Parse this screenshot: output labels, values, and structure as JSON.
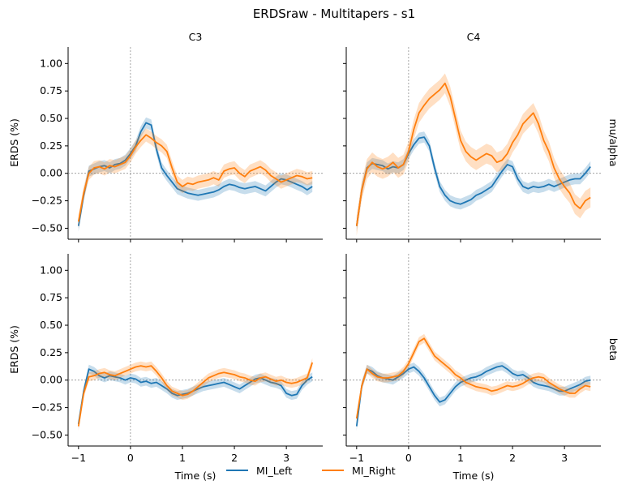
{
  "title": "ERDSraw - Multitapers - s1",
  "columns": [
    "C3",
    "C4"
  ],
  "rows": [
    "mu/alpha",
    "beta"
  ],
  "ylabel": "ERDS (%)",
  "xlabel": "Time (s)",
  "legend": {
    "items": [
      "MI_Left",
      "MI_Right"
    ],
    "position": "bottom-center"
  },
  "colors": {
    "MI_Left": "#1f77b4",
    "MI_Right": "#ff7f0e",
    "reference": "#7f7f7f"
  },
  "chart_data": [
    {
      "type": "line",
      "row": "mu/alpha",
      "column": "C3",
      "xlim": [
        -1.2,
        3.7
      ],
      "ylim": [
        -0.6,
        1.15
      ],
      "xticks": [
        -1,
        0,
        1,
        2,
        3
      ],
      "yticks": [
        -0.5,
        -0.25,
        0.0,
        0.25,
        0.5,
        0.75,
        1.0
      ],
      "grid": false,
      "reference_lines": {
        "x": 0,
        "y": 0
      },
      "shaded_band": "confidence interval",
      "x": [
        -1.0,
        -0.9,
        -0.8,
        -0.7,
        -0.6,
        -0.5,
        -0.4,
        -0.3,
        -0.2,
        -0.1,
        0.0,
        0.1,
        0.2,
        0.3,
        0.4,
        0.5,
        0.6,
        0.7,
        0.8,
        0.9,
        1.0,
        1.1,
        1.2,
        1.3,
        1.4,
        1.5,
        1.6,
        1.7,
        1.8,
        1.9,
        2.0,
        2.1,
        2.2,
        2.3,
        2.4,
        2.5,
        2.6,
        2.7,
        2.8,
        2.9,
        3.0,
        3.1,
        3.2,
        3.3,
        3.4,
        3.5
      ],
      "series": [
        {
          "name": "MI_Left",
          "values": [
            -0.48,
            -0.2,
            0.02,
            0.04,
            0.06,
            0.07,
            0.05,
            0.08,
            0.09,
            0.12,
            0.18,
            0.25,
            0.38,
            0.46,
            0.44,
            0.22,
            0.05,
            -0.02,
            -0.08,
            -0.14,
            -0.16,
            -0.18,
            -0.19,
            -0.2,
            -0.19,
            -0.18,
            -0.17,
            -0.15,
            -0.12,
            -0.1,
            -0.11,
            -0.13,
            -0.14,
            -0.13,
            -0.12,
            -0.14,
            -0.16,
            -0.12,
            -0.08,
            -0.05,
            -0.06,
            -0.08,
            -0.1,
            -0.12,
            -0.15,
            -0.12
          ],
          "ci": 0.05
        },
        {
          "name": "MI_Right",
          "values": [
            -0.44,
            -0.18,
            0.0,
            0.05,
            0.06,
            0.04,
            0.07,
            0.06,
            0.08,
            0.1,
            0.16,
            0.24,
            0.3,
            0.35,
            0.32,
            0.28,
            0.25,
            0.2,
            0.05,
            -0.08,
            -0.12,
            -0.09,
            -0.1,
            -0.08,
            -0.07,
            -0.06,
            -0.04,
            -0.06,
            0.02,
            0.04,
            0.05,
            0.0,
            -0.03,
            0.02,
            0.04,
            0.06,
            0.03,
            -0.02,
            -0.05,
            -0.08,
            -0.06,
            -0.04,
            -0.02,
            -0.03,
            -0.05,
            -0.04
          ],
          "ci": 0.06
        }
      ]
    },
    {
      "type": "line",
      "row": "mu/alpha",
      "column": "C4",
      "xlim": [
        -1.2,
        3.7
      ],
      "ylim": [
        -0.6,
        1.15
      ],
      "xticks": [
        -1,
        0,
        1,
        2,
        3
      ],
      "yticks": [
        -0.5,
        -0.25,
        0.0,
        0.25,
        0.5,
        0.75,
        1.0
      ],
      "grid": false,
      "reference_lines": {
        "x": 0,
        "y": 0
      },
      "shaded_band": "confidence interval",
      "x": [
        -1.0,
        -0.9,
        -0.8,
        -0.7,
        -0.6,
        -0.5,
        -0.4,
        -0.3,
        -0.2,
        -0.1,
        0.0,
        0.1,
        0.2,
        0.3,
        0.4,
        0.5,
        0.6,
        0.7,
        0.8,
        0.9,
        1.0,
        1.1,
        1.2,
        1.3,
        1.4,
        1.5,
        1.6,
        1.7,
        1.8,
        1.9,
        2.0,
        2.1,
        2.2,
        2.3,
        2.4,
        2.5,
        2.6,
        2.7,
        2.8,
        2.9,
        3.0,
        3.1,
        3.2,
        3.3,
        3.4,
        3.5
      ],
      "series": [
        {
          "name": "MI_Left",
          "values": [
            -0.48,
            -0.15,
            0.05,
            0.09,
            0.08,
            0.07,
            0.04,
            0.06,
            0.05,
            0.08,
            0.18,
            0.26,
            0.32,
            0.33,
            0.25,
            0.05,
            -0.12,
            -0.2,
            -0.25,
            -0.27,
            -0.28,
            -0.26,
            -0.24,
            -0.2,
            -0.18,
            -0.15,
            -0.12,
            -0.05,
            0.02,
            0.08,
            0.06,
            -0.05,
            -0.12,
            -0.14,
            -0.12,
            -0.13,
            -0.12,
            -0.1,
            -0.12,
            -0.1,
            -0.08,
            -0.06,
            -0.05,
            -0.05,
            0.0,
            0.06
          ],
          "ci": 0.05
        },
        {
          "name": "MI_Right",
          "values": [
            -0.48,
            -0.15,
            0.04,
            0.1,
            0.06,
            0.04,
            0.06,
            0.1,
            0.05,
            0.08,
            0.2,
            0.4,
            0.55,
            0.62,
            0.68,
            0.72,
            0.76,
            0.82,
            0.7,
            0.5,
            0.3,
            0.2,
            0.15,
            0.12,
            0.15,
            0.18,
            0.16,
            0.1,
            0.12,
            0.18,
            0.28,
            0.35,
            0.45,
            0.5,
            0.55,
            0.45,
            0.3,
            0.2,
            0.05,
            -0.05,
            -0.12,
            -0.18,
            -0.28,
            -0.32,
            -0.25,
            -0.22
          ],
          "ci": 0.09
        }
      ]
    },
    {
      "type": "line",
      "row": "beta",
      "column": "C3",
      "xlim": [
        -1.2,
        3.7
      ],
      "ylim": [
        -0.6,
        1.15
      ],
      "xticks": [
        -1,
        0,
        1,
        2,
        3
      ],
      "yticks": [
        -0.5,
        -0.25,
        0.0,
        0.25,
        0.5,
        0.75,
        1.0
      ],
      "grid": false,
      "reference_lines": {
        "x": 0,
        "y": 0
      },
      "shaded_band": "confidence interval",
      "x": [
        -1.0,
        -0.9,
        -0.8,
        -0.7,
        -0.6,
        -0.5,
        -0.4,
        -0.3,
        -0.2,
        -0.1,
        0.0,
        0.1,
        0.2,
        0.3,
        0.4,
        0.5,
        0.6,
        0.7,
        0.8,
        0.9,
        1.0,
        1.1,
        1.2,
        1.3,
        1.4,
        1.5,
        1.6,
        1.7,
        1.8,
        1.9,
        2.0,
        2.1,
        2.2,
        2.3,
        2.4,
        2.5,
        2.6,
        2.7,
        2.8,
        2.9,
        3.0,
        3.1,
        3.2,
        3.3,
        3.4,
        3.5
      ],
      "series": [
        {
          "name": "MI_Left",
          "values": [
            -0.4,
            -0.1,
            0.1,
            0.08,
            0.04,
            0.02,
            0.04,
            0.03,
            0.02,
            0.0,
            0.02,
            0.01,
            -0.02,
            -0.01,
            -0.03,
            -0.02,
            -0.05,
            -0.08,
            -0.12,
            -0.14,
            -0.13,
            -0.12,
            -0.1,
            -0.08,
            -0.06,
            -0.05,
            -0.04,
            -0.03,
            -0.02,
            -0.04,
            -0.06,
            -0.08,
            -0.05,
            -0.02,
            0.01,
            0.02,
            0.0,
            -0.02,
            -0.03,
            -0.05,
            -0.12,
            -0.14,
            -0.13,
            -0.05,
            0.0,
            0.03
          ],
          "ci": 0.04
        },
        {
          "name": "MI_Right",
          "values": [
            -0.42,
            -0.12,
            0.03,
            0.04,
            0.06,
            0.07,
            0.05,
            0.04,
            0.06,
            0.08,
            0.1,
            0.12,
            0.13,
            0.12,
            0.13,
            0.08,
            0.02,
            -0.05,
            -0.1,
            -0.12,
            -0.14,
            -0.13,
            -0.1,
            -0.06,
            -0.02,
            0.02,
            0.04,
            0.06,
            0.07,
            0.06,
            0.05,
            0.03,
            0.02,
            0.0,
            -0.01,
            0.02,
            0.03,
            0.01,
            -0.01,
            0.0,
            -0.02,
            -0.03,
            -0.02,
            0.0,
            0.02,
            0.16
          ],
          "ci": 0.04
        }
      ]
    },
    {
      "type": "line",
      "row": "beta",
      "column": "C4",
      "xlim": [
        -1.2,
        3.7
      ],
      "ylim": [
        -0.6,
        1.15
      ],
      "xticks": [
        -1,
        0,
        1,
        2,
        3
      ],
      "yticks": [
        -0.5,
        -0.25,
        0.0,
        0.25,
        0.5,
        0.75,
        1.0
      ],
      "grid": false,
      "reference_lines": {
        "x": 0,
        "y": 0
      },
      "shaded_band": "confidence interval",
      "x": [
        -1.0,
        -0.9,
        -0.8,
        -0.7,
        -0.6,
        -0.5,
        -0.4,
        -0.3,
        -0.2,
        -0.1,
        0.0,
        0.1,
        0.2,
        0.3,
        0.4,
        0.5,
        0.6,
        0.7,
        0.8,
        0.9,
        1.0,
        1.1,
        1.2,
        1.3,
        1.4,
        1.5,
        1.6,
        1.7,
        1.8,
        1.9,
        2.0,
        2.1,
        2.2,
        2.3,
        2.4,
        2.5,
        2.6,
        2.7,
        2.8,
        2.9,
        3.0,
        3.1,
        3.2,
        3.3,
        3.4,
        3.5
      ],
      "series": [
        {
          "name": "MI_Left",
          "values": [
            -0.42,
            -0.05,
            0.1,
            0.08,
            0.04,
            0.02,
            0.01,
            0.0,
            0.03,
            0.06,
            0.1,
            0.12,
            0.08,
            0.02,
            -0.06,
            -0.14,
            -0.2,
            -0.18,
            -0.12,
            -0.06,
            -0.02,
            0.0,
            0.02,
            0.03,
            0.05,
            0.08,
            0.1,
            0.12,
            0.13,
            0.1,
            0.06,
            0.04,
            0.05,
            0.02,
            -0.02,
            -0.04,
            -0.05,
            -0.06,
            -0.08,
            -0.1,
            -0.1,
            -0.08,
            -0.06,
            -0.04,
            -0.01,
            0.0
          ],
          "ci": 0.04
        },
        {
          "name": "MI_Right",
          "values": [
            -0.35,
            -0.05,
            0.1,
            0.06,
            0.03,
            0.02,
            0.02,
            0.03,
            0.04,
            0.08,
            0.15,
            0.25,
            0.35,
            0.38,
            0.3,
            0.22,
            0.18,
            0.14,
            0.1,
            0.05,
            0.02,
            -0.02,
            -0.04,
            -0.06,
            -0.07,
            -0.08,
            -0.1,
            -0.09,
            -0.07,
            -0.05,
            -0.06,
            -0.05,
            -0.03,
            0.0,
            0.02,
            0.03,
            0.02,
            -0.02,
            -0.05,
            -0.08,
            -0.1,
            -0.12,
            -0.12,
            -0.08,
            -0.05,
            -0.06
          ],
          "ci": 0.04
        }
      ]
    }
  ]
}
